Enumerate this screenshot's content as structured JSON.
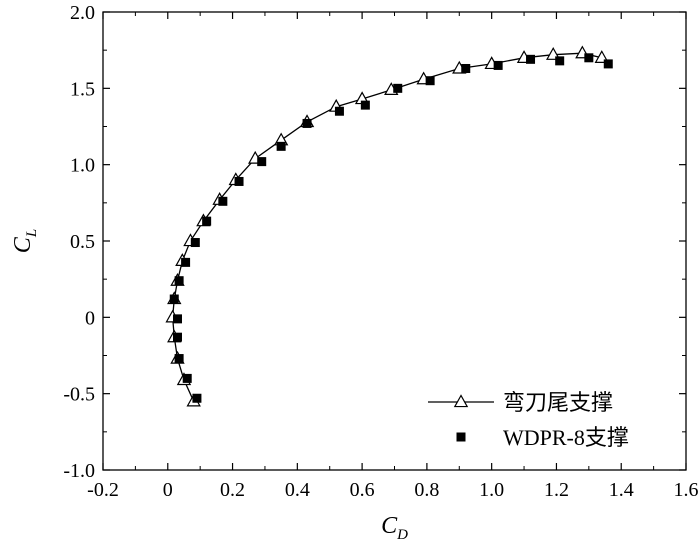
{
  "chart_data": {
    "type": "scatter",
    "xlabel": {
      "main": "C",
      "sub": "D"
    },
    "ylabel": {
      "main": "C",
      "sub": "L"
    },
    "xlim": [
      -0.2,
      1.6
    ],
    "ylim": [
      -1.0,
      2.0
    ],
    "xticks": [
      -0.2,
      0,
      0.2,
      0.4,
      0.6,
      0.8,
      1.0,
      1.2,
      1.4,
      1.6
    ],
    "xtick_labels": [
      "-0.2",
      "0",
      "0.2",
      "0.4",
      "0.6",
      "0.8",
      "1.0",
      "1.2",
      "1.4",
      "1.6"
    ],
    "yticks": [
      -1.0,
      -0.5,
      0,
      0.5,
      1.0,
      1.5,
      2.0
    ],
    "ytick_labels": [
      "-1.0",
      "-0.5",
      "0",
      "0.5",
      "1.0",
      "1.5",
      "2.0"
    ],
    "grid": false,
    "legend_position": "bottom-right",
    "series": [
      {
        "name": "弯刀尾支撑",
        "style": "line-open-triangle",
        "color": "#000000",
        "points": [
          [
            0.08,
            -0.55
          ],
          [
            0.05,
            -0.41
          ],
          [
            0.03,
            -0.27
          ],
          [
            0.02,
            -0.13
          ],
          [
            0.015,
            0.0
          ],
          [
            0.02,
            0.12
          ],
          [
            0.03,
            0.24
          ],
          [
            0.045,
            0.37
          ],
          [
            0.07,
            0.5
          ],
          [
            0.11,
            0.63
          ],
          [
            0.16,
            0.77
          ],
          [
            0.21,
            0.9
          ],
          [
            0.27,
            1.04
          ],
          [
            0.35,
            1.16
          ],
          [
            0.43,
            1.28
          ],
          [
            0.52,
            1.38
          ],
          [
            0.6,
            1.43
          ],
          [
            0.69,
            1.49
          ],
          [
            0.79,
            1.56
          ],
          [
            0.9,
            1.63
          ],
          [
            1.0,
            1.66
          ],
          [
            1.1,
            1.7
          ],
          [
            1.19,
            1.72
          ],
          [
            1.28,
            1.73
          ],
          [
            1.34,
            1.7
          ]
        ]
      },
      {
        "name": "WDPR-8支撑",
        "style": "filled-square",
        "color": "#000000",
        "points": [
          [
            0.09,
            -0.53
          ],
          [
            0.06,
            -0.4
          ],
          [
            0.035,
            -0.27
          ],
          [
            0.03,
            -0.13
          ],
          [
            0.03,
            -0.01
          ],
          [
            0.02,
            0.12
          ],
          [
            0.035,
            0.24
          ],
          [
            0.055,
            0.36
          ],
          [
            0.085,
            0.49
          ],
          [
            0.12,
            0.63
          ],
          [
            0.17,
            0.76
          ],
          [
            0.22,
            0.89
          ],
          [
            0.29,
            1.02
          ],
          [
            0.35,
            1.12
          ],
          [
            0.43,
            1.27
          ],
          [
            0.53,
            1.35
          ],
          [
            0.61,
            1.39
          ],
          [
            0.71,
            1.5
          ],
          [
            0.81,
            1.55
          ],
          [
            0.92,
            1.63
          ],
          [
            1.02,
            1.65
          ],
          [
            1.12,
            1.69
          ],
          [
            1.21,
            1.68
          ],
          [
            1.3,
            1.7
          ],
          [
            1.36,
            1.66
          ]
        ]
      }
    ]
  }
}
